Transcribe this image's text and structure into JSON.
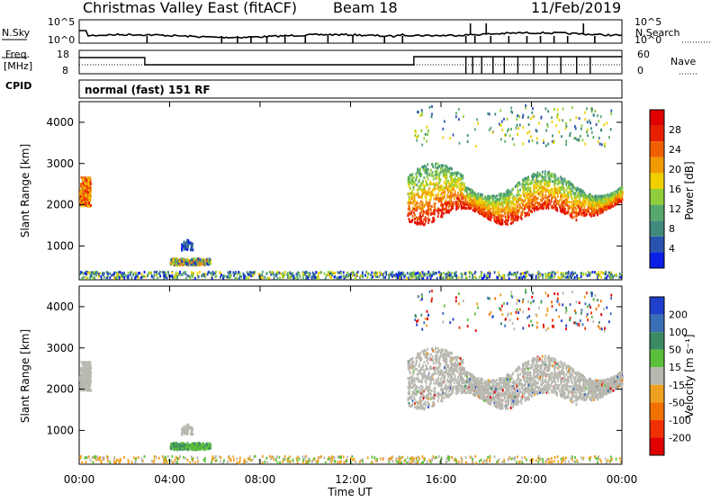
{
  "header": {
    "station": "Christmas Valley East (fitACF)",
    "beam": "Beam 18",
    "date": "11/Feb/2019"
  },
  "top_panels": {
    "nsky_label": "N.Sky",
    "nsky_ticks": [
      "10^5",
      "10^0"
    ],
    "nsearch_label": "N.Search",
    "nsearch_ticks": [
      "10^5",
      "10^0"
    ],
    "freq_label": "Freq.",
    "freq_unit": "[MHz]",
    "freq_ticks": [
      "18",
      "8"
    ],
    "nave_label": "Nave",
    "nave_ticks": [
      "60",
      "0"
    ],
    "cpid_label": "CPID",
    "cpid_value": "normal (fast) 151 RF"
  },
  "axes": {
    "xlabel": "Time UT",
    "x_ticks": [
      "00:00",
      "04:00",
      "08:00",
      "12:00",
      "16:00",
      "20:00",
      "00:00"
    ],
    "ylabel": "Slant Range [km]",
    "y_ticks": [
      "1000",
      "2000",
      "3000",
      "4000"
    ]
  },
  "power_colorbar": {
    "label": "Power [dB]",
    "ticks": [
      "4",
      "8",
      "12",
      "16",
      "20",
      "24",
      "28"
    ],
    "colors": [
      "#0a1ee6",
      "#2a53b0",
      "#3f8a7a",
      "#56a86d",
      "#8fce3a",
      "#f0d000",
      "#f09a00",
      "#f06000",
      "#e82000",
      "#e00000"
    ]
  },
  "velocity_colorbar": {
    "label": "Velocity [m s⁻¹]",
    "ticks": [
      "200",
      "100",
      "50",
      "15",
      "-15",
      "-50",
      "-100",
      "-200"
    ],
    "colors": [
      "#1f3fcc",
      "#3a6fb8",
      "#3c8a64",
      "#5cbf3a",
      "#b8b8b0",
      "#f0a020",
      "#f07000",
      "#f03000",
      "#e00000"
    ]
  },
  "chart_data": {
    "type": "heatmap",
    "x_range_hours": [
      0,
      24
    ],
    "y_range_km": [
      180,
      4500
    ],
    "power_regions": [
      {
        "t0": 0.0,
        "t1": 0.5,
        "r0": 1950,
        "r1": 2650,
        "level": "high"
      },
      {
        "t0": 4.0,
        "t1": 5.8,
        "r0": 520,
        "r1": 680,
        "level": "mixed"
      },
      {
        "t0": 4.5,
        "t1": 5.0,
        "r0": 880,
        "r1": 1150,
        "level": "low"
      },
      {
        "t0": 0.0,
        "t1": 24.0,
        "r0": 200,
        "r1": 350,
        "level": "scatter"
      },
      {
        "t0": 14.5,
        "t1": 24.0,
        "r0": 1500,
        "r1": 2850,
        "level": "band"
      },
      {
        "t0": 14.8,
        "t1": 23.6,
        "r0": 3400,
        "r1": 4400,
        "level": "sparse"
      }
    ],
    "velocity_regions": [
      {
        "t0": 0.0,
        "t1": 0.5,
        "r0": 1950,
        "r1": 2650,
        "value": "-15..15"
      },
      {
        "t0": 4.0,
        "t1": 5.8,
        "r0": 520,
        "r1": 680,
        "value": "50..100"
      },
      {
        "t0": 0.0,
        "t1": 24.0,
        "r0": 200,
        "r1": 350,
        "value": "-50..15"
      },
      {
        "t0": 14.5,
        "t1": 24.0,
        "r0": 1500,
        "r1": 2850,
        "value": "-15..15"
      },
      {
        "t0": 14.8,
        "t1": 23.6,
        "r0": 3400,
        "r1": 4400,
        "value": "mixed"
      }
    ]
  }
}
